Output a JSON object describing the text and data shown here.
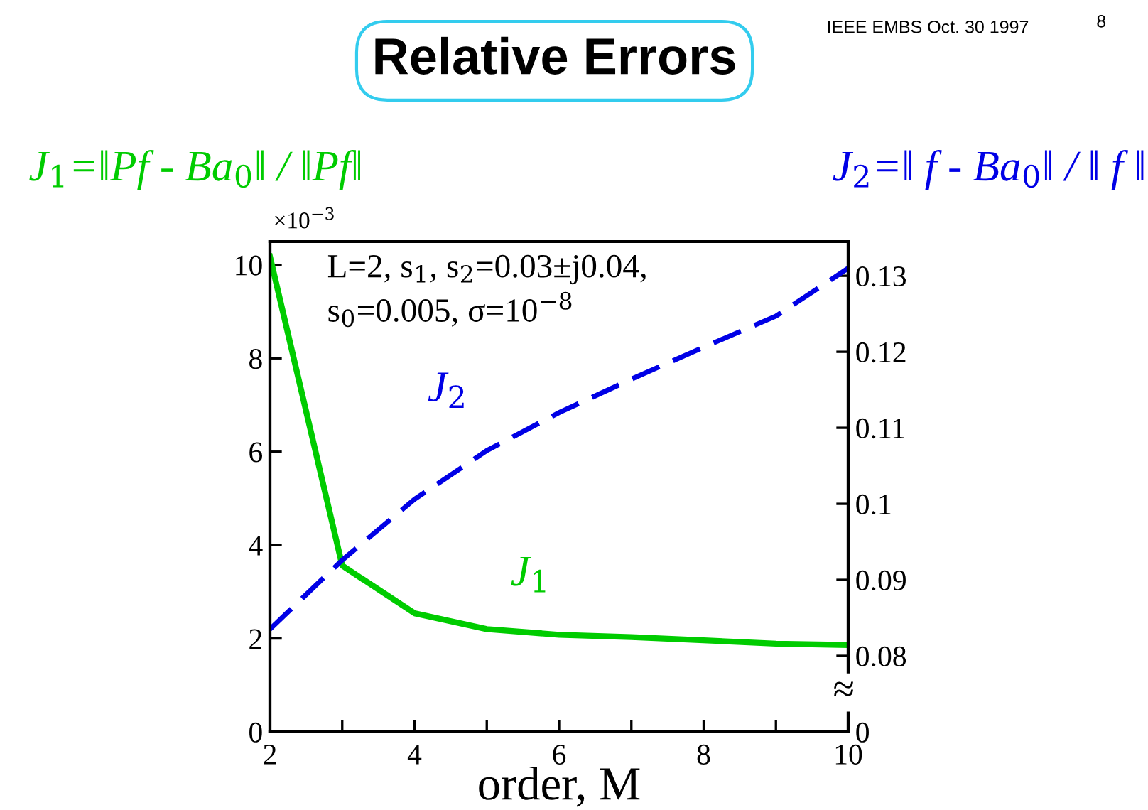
{
  "chart_data": {
    "type": "line",
    "title": "Relative Errors",
    "xlabel": "order, M",
    "x": [
      2,
      3,
      4,
      5,
      6,
      7,
      8,
      9,
      10
    ],
    "series": [
      {
        "name": "J$_{1}$",
        "color": "#00cc00",
        "line_style": "solid",
        "values": [
          10.18,
          3.56,
          2.54,
          2.2,
          2.08,
          2.03,
          1.96,
          1.89,
          1.86
        ]
      },
      {
        "name": "J$_{2}$",
        "color": "#0000e6",
        "line_style": "dashed",
        "axis": "y2",
        "values": [
          0.0835,
          0.0926,
          0.1006,
          0.107,
          0.112,
          0.1164,
          0.1206,
          0.1247,
          0.131
        ]
      }
    ],
    "xlim": [
      2,
      10
    ],
    "xticks": [
      2,
      {
        "value": 3,
        "label": null
      },
      4,
      {
        "value": 5,
        "label": null
      },
      6,
      {
        "value": 7,
        "label": null
      },
      8,
      {
        "value": 9,
        "label": null
      },
      10
    ],
    "ylim": [
      0,
      10.5
    ],
    "yticks": [
      0,
      2,
      4,
      6,
      8,
      10
    ],
    "y2lim": [
      0.07,
      0.1345
    ],
    "y2ticks": [
      {
        "value": 0.07,
        "label": "0"
      },
      0.08,
      0.09,
      0.1,
      0.11,
      0.12,
      0.13
    ],
    "grid": false,
    "legend": false,
    "marker": "none",
    "annotations": [
      "J$_{1}$=‖Pf - Ba$_{0}$‖ / ‖Pf‖",
      "J$_{2}$=‖ f - Ba$_{0}$‖ / ‖ f ‖",
      "×10$^{−3}$",
      "L=2, s$_{1}$, s$_{2}$=0.03±j0.04,\ns$_{0}$=0.005, σ=10$^{−8}$",
      "≈",
      "IEEE EMBS Oct. 30 1997",
      "8"
    ]
  }
}
